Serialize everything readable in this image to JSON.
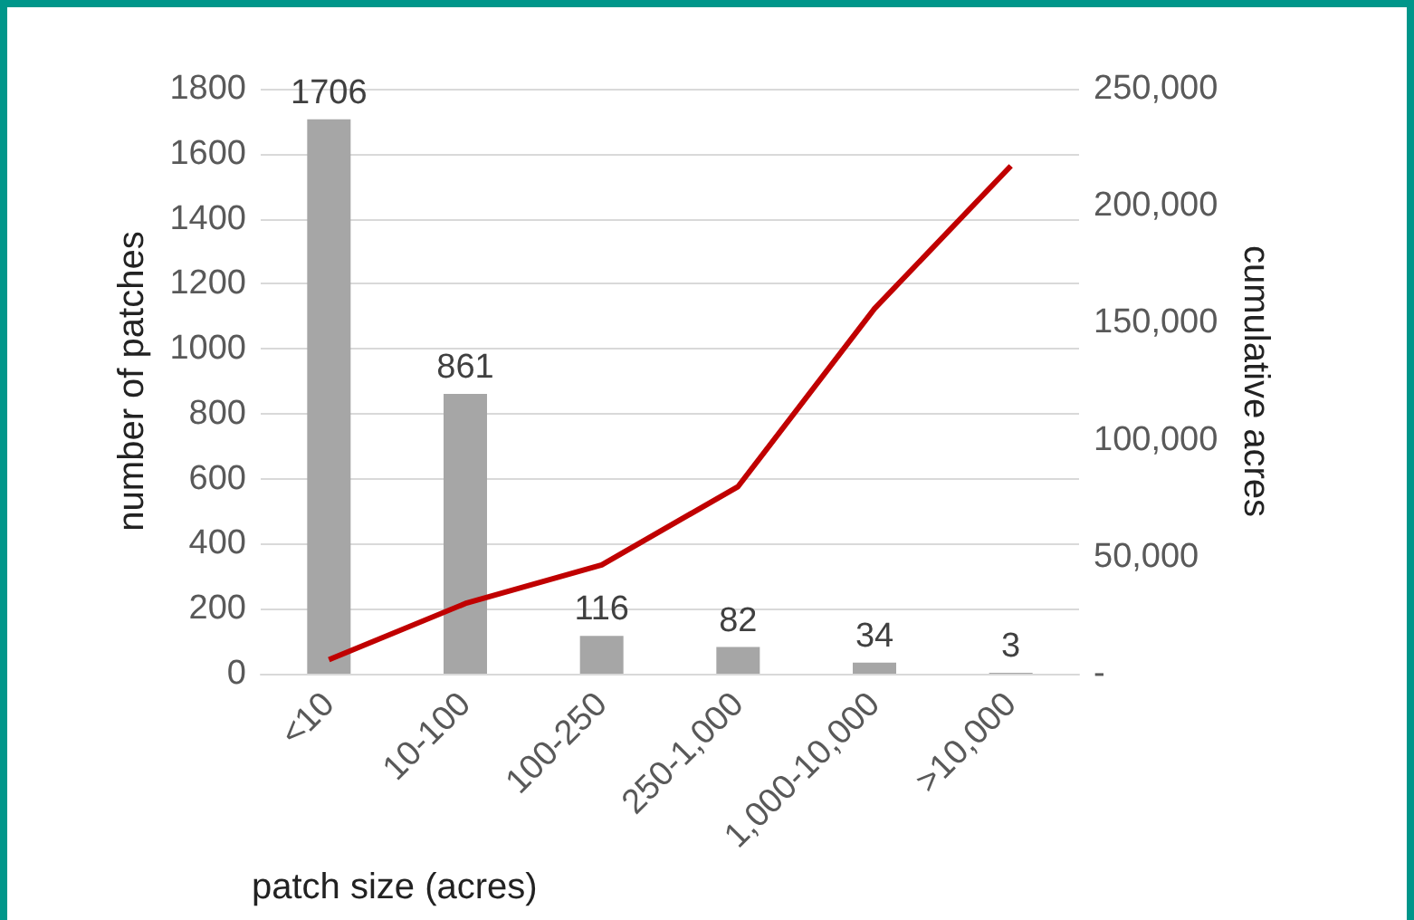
{
  "chart_data": {
    "type": "bar",
    "xlabel": "patch size (acres)",
    "ylabel": "number of patches",
    "y2label": "cumulative acres",
    "categories": [
      "<10",
      "10-100",
      "100-250",
      "250-1,000",
      "1,000-10,000",
      ">10,000"
    ],
    "series": [
      {
        "color": "#a6a6a6",
        "values": [
          1706,
          861,
          116,
          82,
          34,
          3
        ],
        "data_labels": true
      },
      {
        "type": "line",
        "axis": "y2",
        "color": "#c00000",
        "values": [
          6000,
          30000,
          46500,
          80000,
          156000,
          217000
        ],
        "marker": "none"
      }
    ],
    "ylim": [
      0,
      1800
    ],
    "yticks": [
      0,
      200,
      400,
      600,
      800,
      1000,
      1200,
      1400,
      1600,
      1800
    ],
    "y2lim": [
      0,
      250000
    ],
    "y2ticks": [
      {
        "value": 0,
        "label": "-"
      },
      {
        "value": 50000,
        "label": "50,000"
      },
      {
        "value": 100000,
        "label": "100,000"
      },
      {
        "value": 150000,
        "label": "150,000"
      },
      {
        "value": 200000,
        "label": "200,000"
      },
      {
        "value": 250000,
        "label": "250,000"
      }
    ],
    "grid": "y"
  }
}
